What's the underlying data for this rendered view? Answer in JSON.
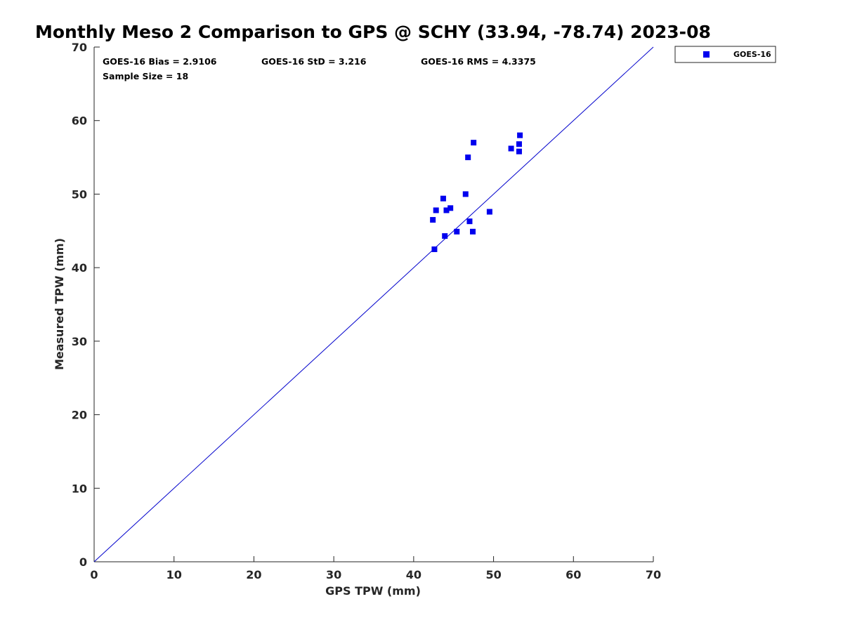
{
  "chart_data": {
    "type": "scatter",
    "title": "Monthly Meso 2 Comparison to GPS @ SCHY (33.94, -78.74) 2023-08",
    "xlabel": "GPS TPW (mm)",
    "ylabel": "Measured TPW (mm)",
    "xlim": [
      0,
      70
    ],
    "ylim": [
      0,
      70
    ],
    "xticks": [
      0,
      10,
      20,
      30,
      40,
      50,
      60,
      70
    ],
    "yticks": [
      0,
      10,
      20,
      30,
      40,
      50,
      60,
      70
    ],
    "grid": false,
    "legend_position": "outside-top-right",
    "reference_line": {
      "name": "1:1 line",
      "x": [
        0,
        70
      ],
      "y": [
        0,
        70
      ],
      "color": "#0000cc"
    },
    "series": [
      {
        "name": "GOES-16",
        "marker": "square",
        "color": "#0000ee",
        "points": [
          {
            "x": 42.4,
            "y": 46.5
          },
          {
            "x": 42.6,
            "y": 42.5
          },
          {
            "x": 42.8,
            "y": 47.8
          },
          {
            "x": 43.7,
            "y": 49.4
          },
          {
            "x": 43.9,
            "y": 44.3
          },
          {
            "x": 44.1,
            "y": 47.8
          },
          {
            "x": 44.6,
            "y": 48.1
          },
          {
            "x": 45.4,
            "y": 44.9
          },
          {
            "x": 46.5,
            "y": 50.0
          },
          {
            "x": 46.8,
            "y": 55.0
          },
          {
            "x": 47.0,
            "y": 46.3
          },
          {
            "x": 47.4,
            "y": 44.9
          },
          {
            "x": 47.5,
            "y": 57.0
          },
          {
            "x": 49.5,
            "y": 47.6
          },
          {
            "x": 52.2,
            "y": 56.2
          },
          {
            "x": 53.2,
            "y": 56.8
          },
          {
            "x": 53.2,
            "y": 55.8
          },
          {
            "x": 53.3,
            "y": 58.0
          }
        ]
      }
    ],
    "annotations": {
      "bias": "GOES-16 Bias = 2.9106",
      "std": "GOES-16 StD = 3.216",
      "rms": "GOES-16 RMS = 4.3375",
      "sample": "Sample Size = 18"
    }
  }
}
